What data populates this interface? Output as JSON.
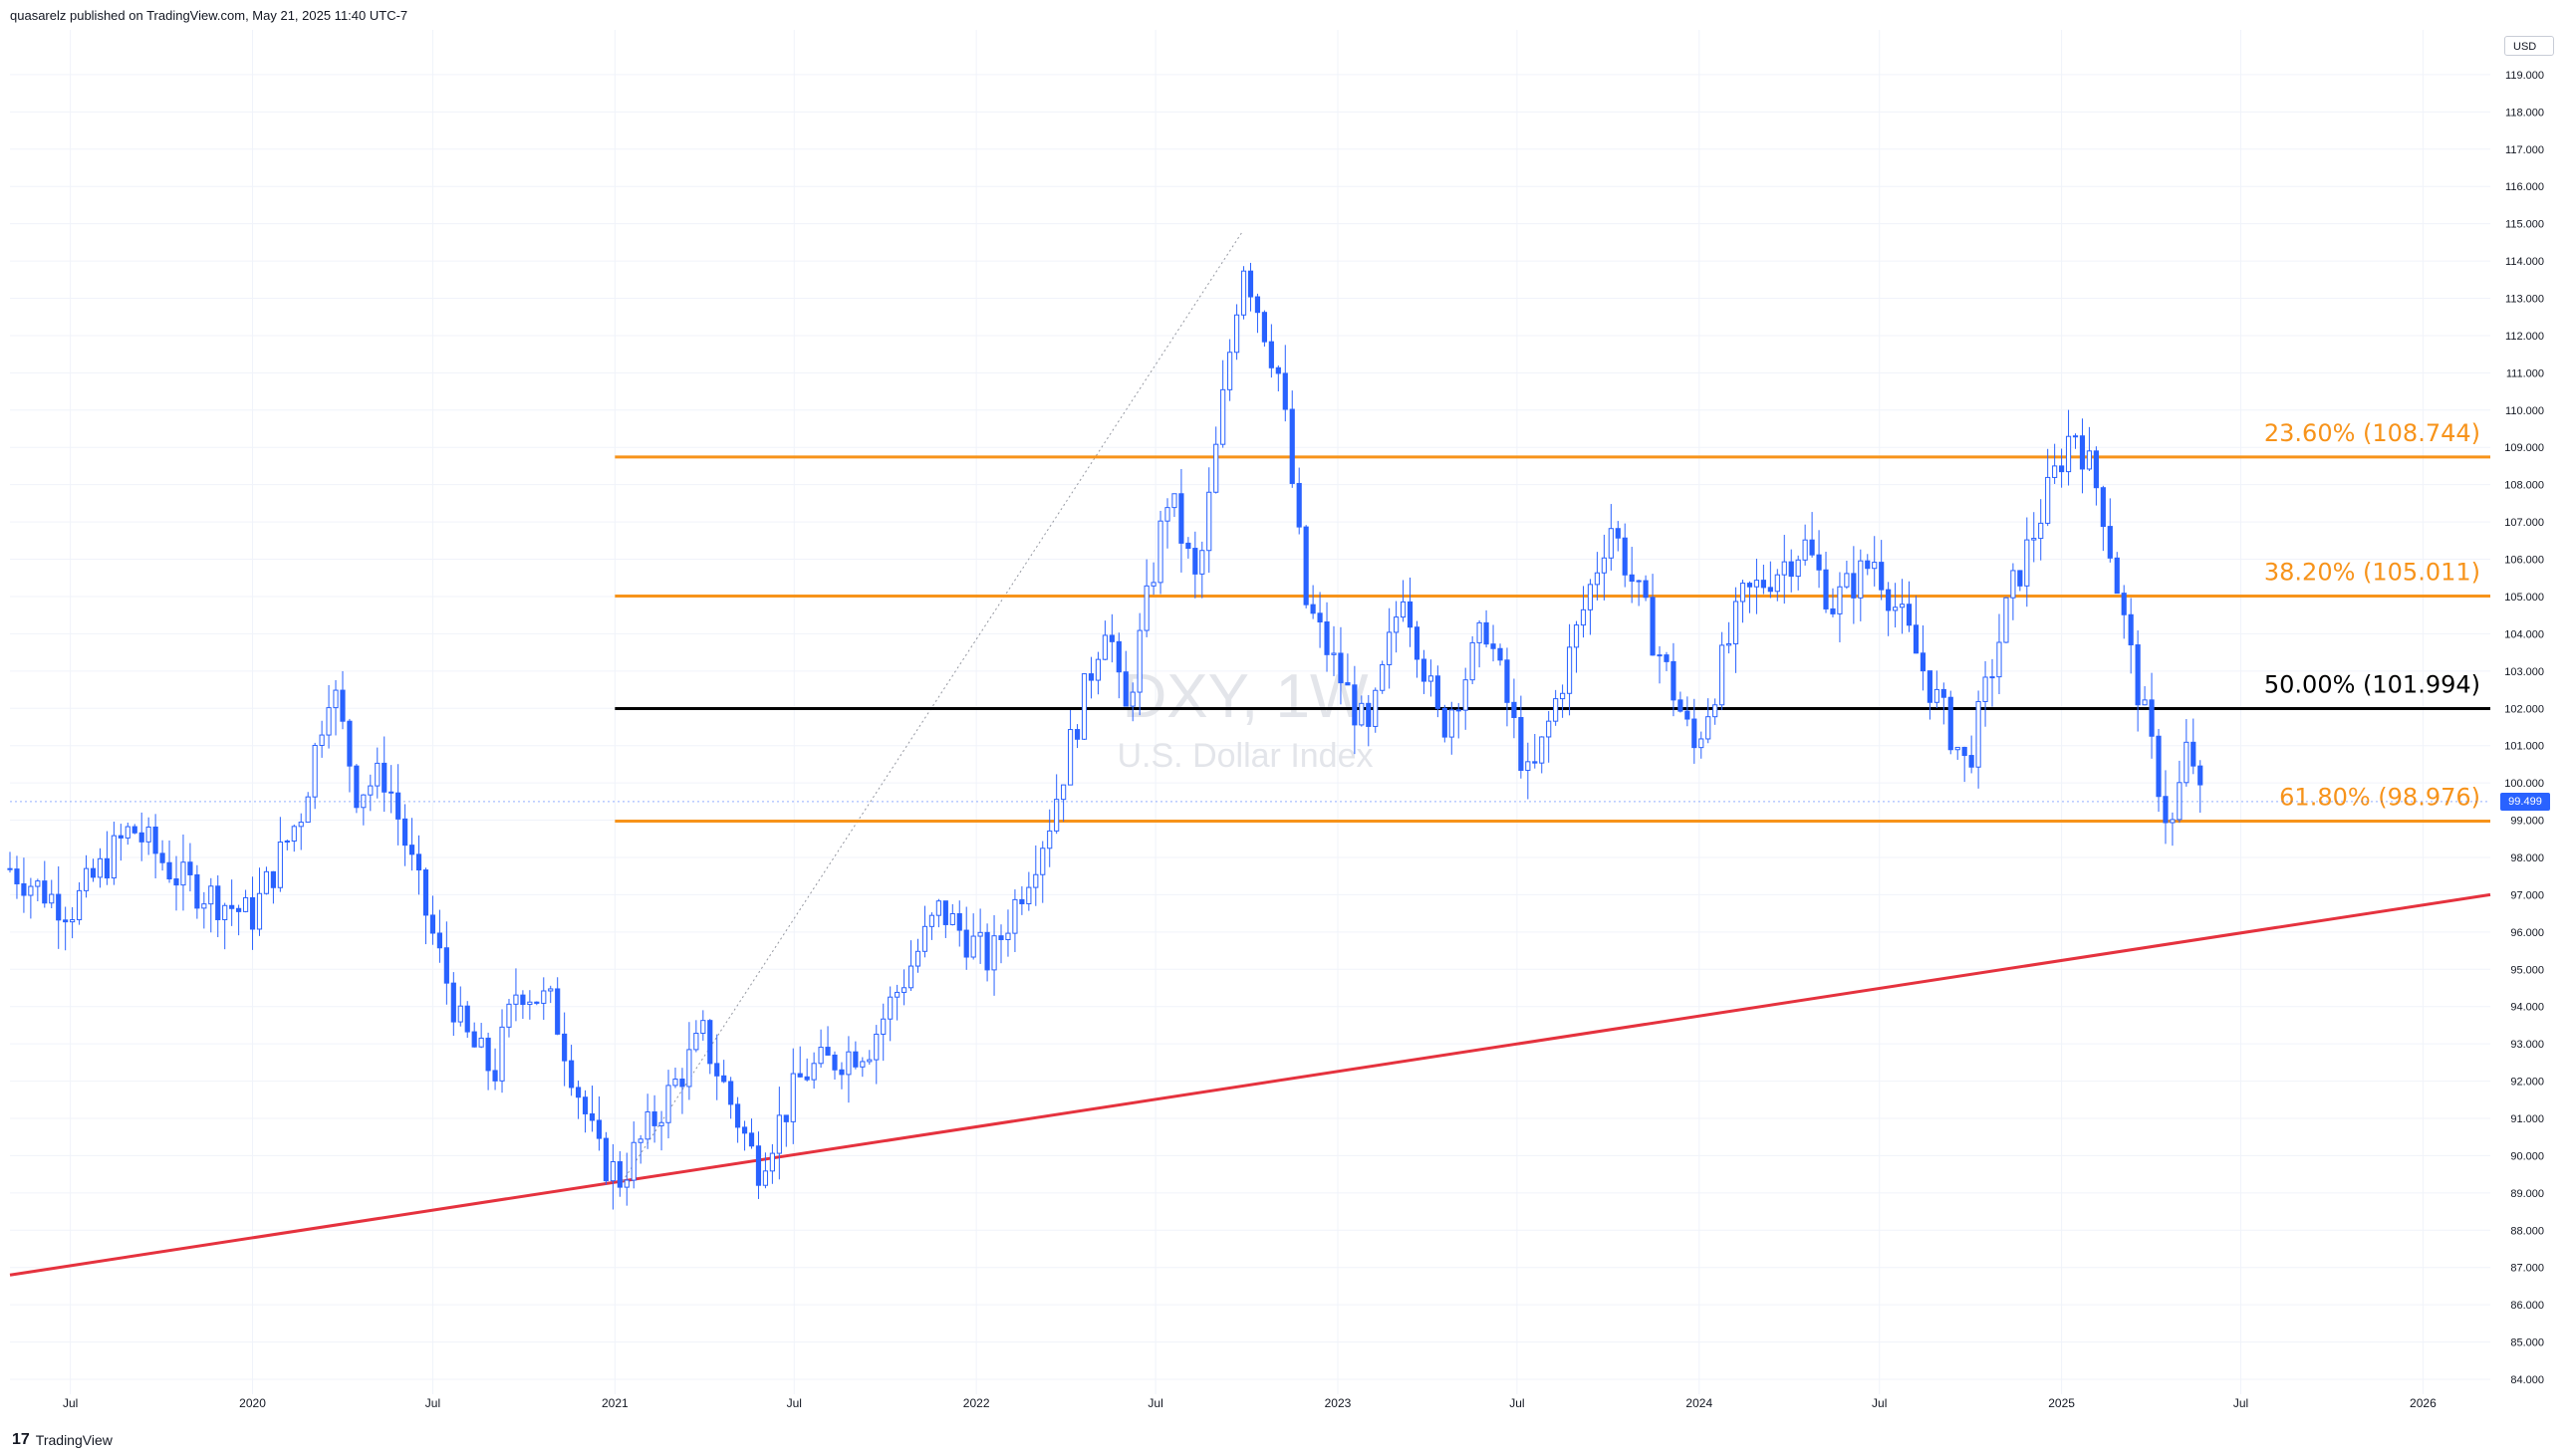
{
  "header": {
    "publisher_line": "quasarelz published on TradingView.com, May 21, 2025 11:40 UTC-7"
  },
  "footer": {
    "brand": "TradingView",
    "logo_text": "17"
  },
  "watermark": {
    "symbol": "DXY, 1W",
    "name": "U.S. Dollar Index"
  },
  "currency": "USD",
  "last_price_label": "99.499",
  "colors": {
    "candle": "#2962ff",
    "fib_orange": "#f7931a",
    "fib_black": "#000000",
    "trendline": "#e5323e",
    "grid": "#f0f3fa",
    "axis_text": "#131722",
    "watermark": "#d1d4dc"
  },
  "chart_data": {
    "type": "candlestick",
    "symbol": "DXY",
    "timeframe": "1W",
    "y_axis_labels": [
      "84.000",
      "85.000",
      "86.000",
      "87.000",
      "88.000",
      "89.000",
      "90.000",
      "91.000",
      "92.000",
      "93.000",
      "94.000",
      "95.000",
      "96.000",
      "97.000",
      "98.000",
      "99.000",
      "100.000",
      "101.000",
      "102.000",
      "103.000",
      "104.000",
      "105.000",
      "106.000",
      "107.000",
      "108.000",
      "109.000",
      "110.000",
      "111.000",
      "112.000",
      "113.000",
      "114.000",
      "115.000",
      "116.000",
      "117.000",
      "118.000",
      "119.000"
    ],
    "y_range": [
      83.6,
      120.2
    ],
    "x_range": [
      "2019-05-01",
      "2026-03-10"
    ],
    "x_axis_labels": [
      {
        "label": "Jul",
        "date": "2019-07-01"
      },
      {
        "label": "2020",
        "date": "2020-01-01"
      },
      {
        "label": "Jul",
        "date": "2020-07-01"
      },
      {
        "label": "2021",
        "date": "2021-01-01"
      },
      {
        "label": "Jul",
        "date": "2021-07-01"
      },
      {
        "label": "2022",
        "date": "2022-01-01"
      },
      {
        "label": "Jul",
        "date": "2022-07-01"
      },
      {
        "label": "2023",
        "date": "2023-01-01"
      },
      {
        "label": "Jul",
        "date": "2023-07-01"
      },
      {
        "label": "2024",
        "date": "2024-01-01"
      },
      {
        "label": "Jul",
        "date": "2024-07-01"
      },
      {
        "label": "2025",
        "date": "2025-01-01"
      },
      {
        "label": "Jul",
        "date": "2025-07-01"
      },
      {
        "label": "2026",
        "date": "2026-01-01"
      }
    ],
    "close_path": [
      {
        "date": "2019-05-01",
        "close": 97.7
      },
      {
        "date": "2019-07-01",
        "close": 96.6
      },
      {
        "date": "2019-09-01",
        "close": 98.8
      },
      {
        "date": "2019-10-20",
        "close": 97.4
      },
      {
        "date": "2019-12-31",
        "close": 96.4
      },
      {
        "date": "2020-02-20",
        "close": 99.3
      },
      {
        "date": "2020-03-20",
        "close": 102.8
      },
      {
        "date": "2020-04-15",
        "close": 99.8
      },
      {
        "date": "2020-05-15",
        "close": 100.2
      },
      {
        "date": "2020-06-15",
        "close": 97.3
      },
      {
        "date": "2020-07-31",
        "close": 93.3
      },
      {
        "date": "2020-09-01",
        "close": 92.2
      },
      {
        "date": "2020-09-25",
        "close": 94.6
      },
      {
        "date": "2020-10-30",
        "close": 94.0
      },
      {
        "date": "2020-12-15",
        "close": 90.0
      },
      {
        "date": "2021-01-06",
        "close": 89.4
      },
      {
        "date": "2021-03-31",
        "close": 93.2
      },
      {
        "date": "2021-05-25",
        "close": 89.7
      },
      {
        "date": "2021-07-10",
        "close": 92.2
      },
      {
        "date": "2021-09-15",
        "close": 93.0
      },
      {
        "date": "2021-11-25",
        "close": 96.6
      },
      {
        "date": "2022-01-15",
        "close": 95.2
      },
      {
        "date": "2022-03-15",
        "close": 98.9
      },
      {
        "date": "2022-05-13",
        "close": 104.6
      },
      {
        "date": "2022-05-30",
        "close": 101.6
      },
      {
        "date": "2022-07-14",
        "close": 107.8
      },
      {
        "date": "2022-08-12",
        "close": 105.2
      },
      {
        "date": "2022-09-27",
        "close": 114.1
      },
      {
        "date": "2022-11-04",
        "close": 110.8
      },
      {
        "date": "2022-11-30",
        "close": 104.8
      },
      {
        "date": "2023-02-01",
        "close": 101.2
      },
      {
        "date": "2023-03-08",
        "close": 105.3
      },
      {
        "date": "2023-04-15",
        "close": 101.4
      },
      {
        "date": "2023-05-31",
        "close": 104.2
      },
      {
        "date": "2023-07-14",
        "close": 99.9
      },
      {
        "date": "2023-09-01",
        "close": 104.2
      },
      {
        "date": "2023-10-03",
        "close": 107.0
      },
      {
        "date": "2023-11-30",
        "close": 102.9
      },
      {
        "date": "2023-12-27",
        "close": 100.9
      },
      {
        "date": "2024-02-14",
        "close": 104.9
      },
      {
        "date": "2024-04-16",
        "close": 106.4
      },
      {
        "date": "2024-05-15",
        "close": 104.8
      },
      {
        "date": "2024-06-26",
        "close": 106.0
      },
      {
        "date": "2024-09-27",
        "close": 100.4
      },
      {
        "date": "2024-11-10",
        "close": 105.0
      },
      {
        "date": "2025-01-13",
        "close": 109.6
      },
      {
        "date": "2025-02-10",
        "close": 107.6
      },
      {
        "date": "2025-03-10",
        "close": 103.6
      },
      {
        "date": "2025-04-21",
        "close": 98.6
      },
      {
        "date": "2025-05-10",
        "close": 101.2
      },
      {
        "date": "2025-05-21",
        "close": 99.5
      }
    ],
    "fibonacci_levels": [
      {
        "label": "23.60% (108.744)",
        "value": 108.744,
        "color": "#f7931a"
      },
      {
        "label": "38.20% (105.011)",
        "value": 105.011,
        "color": "#f7931a"
      },
      {
        "label": "50.00% (101.994)",
        "value": 101.994,
        "color": "#000000"
      },
      {
        "label": "61.80% (98.976)",
        "value": 98.976,
        "color": "#f7931a"
      }
    ],
    "fib_start_date": "2021-01-01",
    "fib_end_date": "2026-03-10",
    "fib_trend_line": {
      "from": {
        "date": "2021-01-06",
        "value": 89.2
      },
      "to": {
        "date": "2022-09-27",
        "value": 114.8
      }
    },
    "support_trendline": {
      "from": {
        "date": "2019-05-01",
        "value": 86.8
      },
      "to": {
        "date": "2026-03-10",
        "value": 97.0
      }
    },
    "last_close": 99.499
  }
}
